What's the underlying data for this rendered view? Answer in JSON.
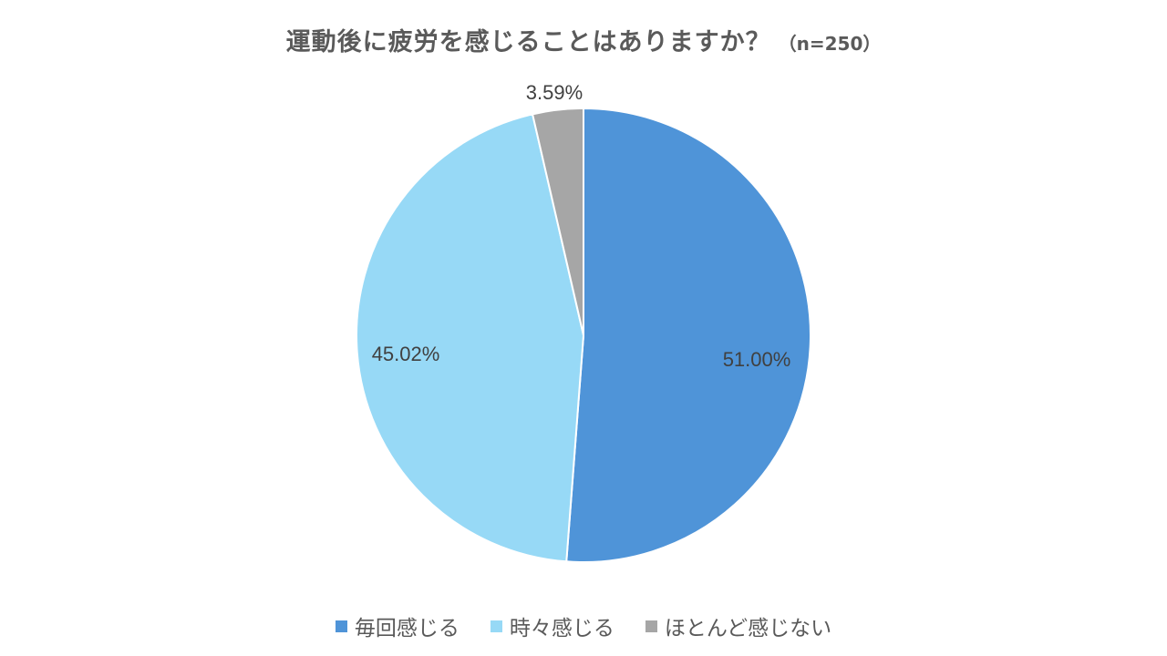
{
  "title": "運動後に疲労を感じることはありますか？",
  "subtitle": "（n=250）",
  "chart_data": {
    "type": "pie",
    "slices": [
      {
        "name": "毎回感じる",
        "value": 51.0,
        "label": "51.00%",
        "color": "#4f94d8"
      },
      {
        "name": "時々感じる",
        "value": 45.02,
        "label": "45.02%",
        "color": "#97d9f6"
      },
      {
        "name": "ほとんど感じない",
        "value": 3.59,
        "label": "3.59%",
        "color": "#a6a6a6"
      }
    ],
    "start_angle": "12 o'clock",
    "direction": "clockwise",
    "legend_position": "bottom"
  }
}
